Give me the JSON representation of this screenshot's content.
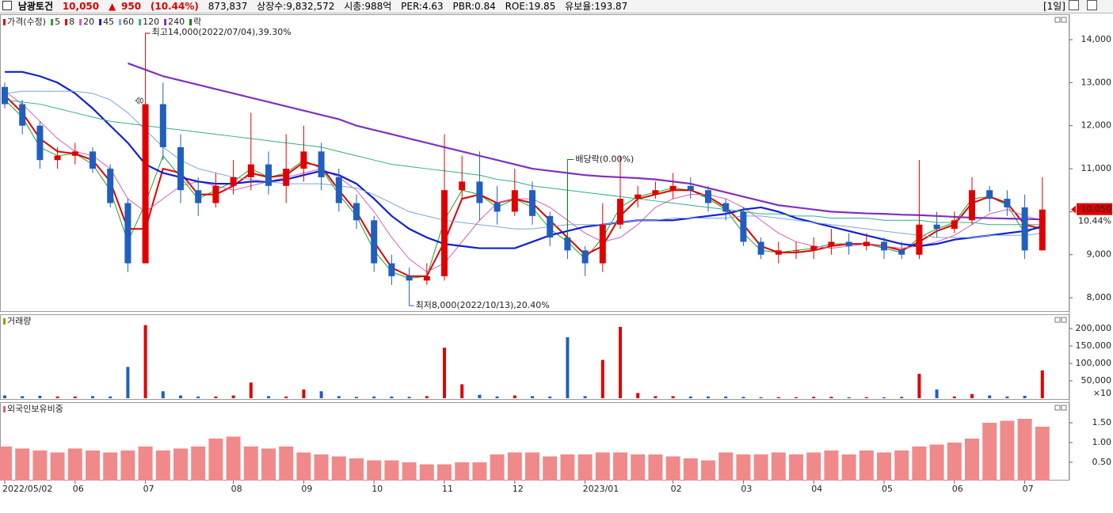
{
  "header": {
    "name": "남광토건",
    "price": "10,050",
    "arrow": "▲",
    "change": "950",
    "change_rate": "(10.44%)",
    "volume": "873,837",
    "listed": "상장수:9,832,572",
    "market_cap": "시총:988억",
    "per": "PER:4.63",
    "pbr": "PBR:0.84",
    "roe": "ROE:19.85",
    "reserve": "유보율:193.87",
    "period": "[1일]"
  },
  "chart_data": [
    {
      "type": "candlestick",
      "name": "가격(수정)",
      "categories": [
        "2022/05/02",
        null,
        null,
        null,
        "06",
        null,
        null,
        null,
        "07",
        null,
        null,
        null,
        null,
        "08",
        null,
        null,
        null,
        "09",
        null,
        null,
        null,
        "10",
        null,
        null,
        null,
        "11",
        null,
        null,
        null,
        "12",
        null,
        null,
        null,
        "2023/01",
        null,
        null,
        null,
        null,
        "02",
        null,
        null,
        null,
        "03",
        null,
        null,
        null,
        "04",
        null,
        null,
        null,
        "05",
        null,
        null,
        null,
        "06",
        null,
        null,
        null,
        "07",
        null
      ],
      "open": [
        12900,
        12500,
        12000,
        11200,
        11300,
        11400,
        11000,
        10200,
        8800,
        12500,
        11500,
        10500,
        10200,
        10600,
        10800,
        11100,
        10600,
        11000,
        11400,
        10800,
        10200,
        9800,
        8800,
        8500,
        8400,
        8500,
        10500,
        10700,
        10200,
        10000,
        10500,
        9900,
        9400,
        9100,
        8800,
        9700,
        10300,
        10400,
        10500,
        10600,
        10500,
        10200,
        10000,
        9300,
        9000,
        9100,
        9100,
        9200,
        9300,
        9200,
        9300,
        9100,
        9000,
        9700,
        9600,
        9800,
        10500,
        10300,
        10100,
        9100
      ],
      "high": [
        13000,
        12600,
        12100,
        11500,
        11600,
        11500,
        11100,
        10300,
        14000,
        13000,
        11800,
        10800,
        10900,
        11200,
        12300,
        11400,
        11800,
        12000,
        11600,
        11000,
        10400,
        9900,
        9000,
        8700,
        8800,
        11800,
        11300,
        11400,
        10600,
        11000,
        10700,
        10000,
        10900,
        9200,
        10200,
        11300,
        10600,
        10700,
        10900,
        10800,
        10600,
        10300,
        10100,
        9400,
        9300,
        9300,
        9400,
        9600,
        9500,
        9500,
        9400,
        9300,
        11200,
        10000,
        10000,
        10800,
        10600,
        10500,
        10400,
        10800
      ],
      "low": [
        12400,
        11800,
        11000,
        11000,
        11100,
        10900,
        10100,
        8600,
        8800,
        11200,
        10200,
        9900,
        10100,
        10400,
        10500,
        10400,
        10200,
        10700,
        10500,
        10000,
        9600,
        8600,
        8300,
        8000,
        8300,
        8400,
        10300,
        9800,
        9700,
        9900,
        9700,
        9200,
        8900,
        8500,
        8600,
        9600,
        10100,
        10300,
        10300,
        10300,
        10000,
        9800,
        9200,
        8900,
        8800,
        8900,
        8900,
        9000,
        9000,
        9100,
        8900,
        8900,
        8900,
        9400,
        9500,
        9700,
        10000,
        9900,
        8900,
        9100
      ],
      "close": [
        12500,
        12000,
        11200,
        11300,
        11400,
        11000,
        10200,
        8800,
        12500,
        11500,
        10500,
        10200,
        10600,
        10800,
        11100,
        10600,
        11000,
        11400,
        10800,
        10200,
        9800,
        8800,
        8500,
        8400,
        8500,
        10500,
        10700,
        10200,
        10000,
        10500,
        9900,
        9400,
        9100,
        8800,
        9700,
        10300,
        10400,
        10500,
        10600,
        10500,
        10200,
        10000,
        9300,
        9000,
        9100,
        9100,
        9200,
        9300,
        9200,
        9300,
        9100,
        9000,
        9700,
        9600,
        9800,
        10500,
        10300,
        10100,
        9100,
        10050
      ],
      "color_up": "#e00000",
      "color_down": "#1f5fc0",
      "series": [
        {
          "name": "5",
          "color": "#22a022",
          "values": [
            12600,
            12200,
            11500,
            11300,
            11350,
            11100,
            10500,
            9300,
            10200,
            11300,
            10800,
            10300,
            10500,
            10700,
            11000,
            10800,
            10900,
            11200,
            11000,
            10400,
            9900,
            9100,
            8600,
            8450,
            8500,
            9800,
            10500,
            10400,
            10100,
            10300,
            10100,
            9600,
            9300,
            8900,
            9400,
            10100,
            10350,
            10450,
            10550,
            10500,
            10300,
            10050,
            9500,
            9100,
            9050,
            9100,
            9150,
            9250,
            9250,
            9250,
            9150,
            9050,
            9400,
            9600,
            9750,
            10300,
            10350,
            10150,
            9500,
            9700
          ]
        },
        {
          "name": "8",
          "color": "#e00000",
          "values": [
            12700,
            12300,
            11700,
            11400,
            11350,
            11200,
            10700,
            9600,
            9600,
            11000,
            10900,
            10400,
            10400,
            10600,
            10900,
            10800,
            10850,
            11150,
            11050,
            10500,
            10000,
            9300,
            8700,
            8500,
            8500,
            9300,
            10300,
            10400,
            10200,
            10300,
            10200,
            9800,
            9400,
            9000,
            9200,
            9900,
            10300,
            10400,
            10500,
            10500,
            10350,
            10100,
            9700,
            9200,
            9050,
            9050,
            9100,
            9200,
            9250,
            9250,
            9200,
            9100,
            9300,
            9550,
            9700,
            10200,
            10350,
            10200,
            9700,
            9600
          ]
        },
        {
          "name": "20",
          "color": "#d060c0",
          "values": [
            12800,
            12500,
            12100,
            11700,
            11400,
            11300,
            11000,
            10300,
            10000,
            10300,
            10600,
            10700,
            10600,
            10500,
            10600,
            10700,
            10800,
            10900,
            11000,
            10800,
            10500,
            10000,
            9400,
            8900,
            8600,
            8800,
            9300,
            9800,
            10200,
            10300,
            10300,
            10100,
            9800,
            9500,
            9300,
            9400,
            9700,
            10100,
            10300,
            10400,
            10400,
            10300,
            10100,
            9800,
            9500,
            9300,
            9200,
            9150,
            9200,
            9250,
            9200,
            9150,
            9200,
            9300,
            9450,
            9700,
            9950,
            10050,
            9900,
            9800
          ]
        },
        {
          "name": "45",
          "color": "#1020d0",
          "values": [
            13250,
            13250,
            13150,
            13000,
            12750,
            12400,
            12000,
            11600,
            11100,
            10900,
            10800,
            10700,
            10650,
            10650,
            10700,
            10700,
            10750,
            10850,
            10950,
            10850,
            10650,
            10300,
            9900,
            9600,
            9400,
            9250,
            9200,
            9150,
            9150,
            9150,
            9300,
            9450,
            9550,
            9650,
            9700,
            9750,
            9800,
            9800,
            9800,
            9850,
            9900,
            9950,
            10050,
            10100,
            10000,
            9850,
            9750,
            9650,
            9550,
            9450,
            9350,
            9250,
            9200,
            9250,
            9350,
            9400,
            9450,
            9500,
            9550,
            9650
          ]
        },
        {
          "name": "60",
          "color": "#7fa6d0",
          "values": [
            12750,
            12800,
            12800,
            12800,
            12800,
            12750,
            12600,
            12300,
            11900,
            11500,
            11200,
            11000,
            10900,
            10800,
            10750,
            10700,
            10650,
            10650,
            10650,
            10600,
            10550,
            10400,
            10200,
            10000,
            9900,
            9800,
            9750,
            9700,
            9650,
            9600,
            9600,
            9650,
            9700,
            9700,
            9700,
            9750,
            9800,
            9800,
            9850,
            9850,
            9850,
            9850,
            9900,
            9900,
            9850,
            9800,
            9750,
            9700,
            9650,
            9600,
            9550,
            9500,
            9450,
            9400,
            9400,
            9400,
            9450,
            9450,
            9450,
            9500
          ]
        },
        {
          "name": "120",
          "color": "#30b080",
          "values": [
            12600,
            12550,
            12500,
            12400,
            12300,
            12200,
            12100,
            12050,
            12000,
            11950,
            11900,
            11850,
            11800,
            11750,
            11700,
            11650,
            11600,
            11550,
            11500,
            11400,
            11300,
            11200,
            11100,
            11050,
            11000,
            10950,
            10900,
            10850,
            10750,
            10700,
            10600,
            10550,
            10500,
            10450,
            10400,
            10350,
            10300,
            10250,
            10200,
            10150,
            10100,
            10050,
            10000,
            9950,
            9950,
            9900,
            9900,
            9850,
            9850,
            9850,
            9800,
            9800,
            9800,
            9750,
            9750,
            9750,
            9700,
            9700,
            9700,
            9700
          ]
        },
        {
          "name": "240",
          "color": "#8030c0",
          "values": [
            null,
            null,
            null,
            null,
            null,
            null,
            null,
            13450,
            13300,
            13150,
            13050,
            12950,
            12850,
            12750,
            12650,
            12550,
            12450,
            12350,
            12250,
            12150,
            12000,
            11900,
            11800,
            11700,
            11600,
            11500,
            11400,
            11300,
            11200,
            11100,
            11000,
            10950,
            10900,
            10850,
            10820,
            10800,
            10780,
            10750,
            10700,
            10650,
            10550,
            10450,
            10350,
            10250,
            10150,
            10100,
            10050,
            10000,
            9980,
            9960,
            9950,
            9930,
            9920,
            9900,
            9880,
            9860,
            9850,
            9840,
            9830,
            9820
          ]
        }
      ],
      "dividend_legend": "락",
      "dividend_color": "#108010",
      "ylim": [
        7670,
        14590
      ],
      "yticks": [
        {
          "value": 8000,
          "label": "8,000"
        },
        {
          "value": 9000,
          "label": "9,000"
        },
        {
          "value": 10000,
          "label": "10,000"
        },
        {
          "value": 11000,
          "label": "11,000"
        },
        {
          "value": 12000,
          "label": "12,000"
        },
        {
          "value": 13000,
          "label": "13,000"
        },
        {
          "value": 14000,
          "label": "14,000"
        }
      ],
      "annotations": {
        "high": "최고14,000(2022/07/04),39.30%",
        "low": "최저8,000(2022/10/13),20.40%",
        "dividend": "배당락(0.00%)",
        "mark": "승"
      },
      "last_label": "10,050",
      "last_change": "10.44%"
    },
    {
      "type": "bar",
      "name": "거래량",
      "values": [
        8000,
        6000,
        7000,
        5000,
        5000,
        6000,
        5000,
        90000,
        210000,
        20000,
        8000,
        5000,
        5000,
        8000,
        45000,
        6000,
        5000,
        25000,
        20000,
        6000,
        4000,
        5000,
        5000,
        4000,
        6000,
        145000,
        40000,
        10000,
        5000,
        8000,
        6000,
        5000,
        175000,
        6000,
        110000,
        205000,
        15000,
        6000,
        6000,
        5000,
        5000,
        5000,
        4000,
        3000,
        3000,
        3000,
        4000,
        4000,
        3000,
        3000,
        3000,
        4000,
        70000,
        25000,
        5000,
        12000,
        8000,
        5000,
        7000,
        80000
      ],
      "ylim": [
        -4500,
        241000
      ],
      "yticks": [
        {
          "value": 50000,
          "label": "50,000"
        },
        {
          "value": 100000,
          "label": "100,000"
        },
        {
          "value": 150000,
          "label": "150,000"
        },
        {
          "value": 200000,
          "label": "200,000"
        }
      ],
      "unit_label": "×10"
    },
    {
      "type": "bar",
      "name": "외국인보유비중",
      "color": "#f08a8a",
      "values": [
        0.9,
        0.85,
        0.8,
        0.75,
        0.85,
        0.8,
        0.75,
        0.8,
        0.9,
        0.8,
        0.85,
        0.9,
        1.1,
        1.15,
        0.9,
        0.85,
        0.9,
        0.75,
        0.7,
        0.65,
        0.6,
        0.55,
        0.55,
        0.5,
        0.45,
        0.45,
        0.5,
        0.5,
        0.7,
        0.75,
        0.75,
        0.65,
        0.7,
        0.7,
        0.75,
        0.75,
        0.7,
        0.7,
        0.65,
        0.6,
        0.55,
        0.75,
        0.7,
        0.7,
        0.75,
        0.7,
        0.75,
        0.8,
        0.7,
        0.8,
        0.75,
        0.8,
        0.9,
        0.95,
        1.0,
        1.1,
        1.5,
        1.55,
        1.6,
        1.4
      ],
      "ylim": [
        0.04,
        2.02
      ],
      "yticks": [
        {
          "value": 0.5,
          "label": "0.50"
        },
        {
          "value": 1,
          "label": "1.00"
        },
        {
          "value": 1.5,
          "label": "1.50"
        }
      ]
    }
  ]
}
